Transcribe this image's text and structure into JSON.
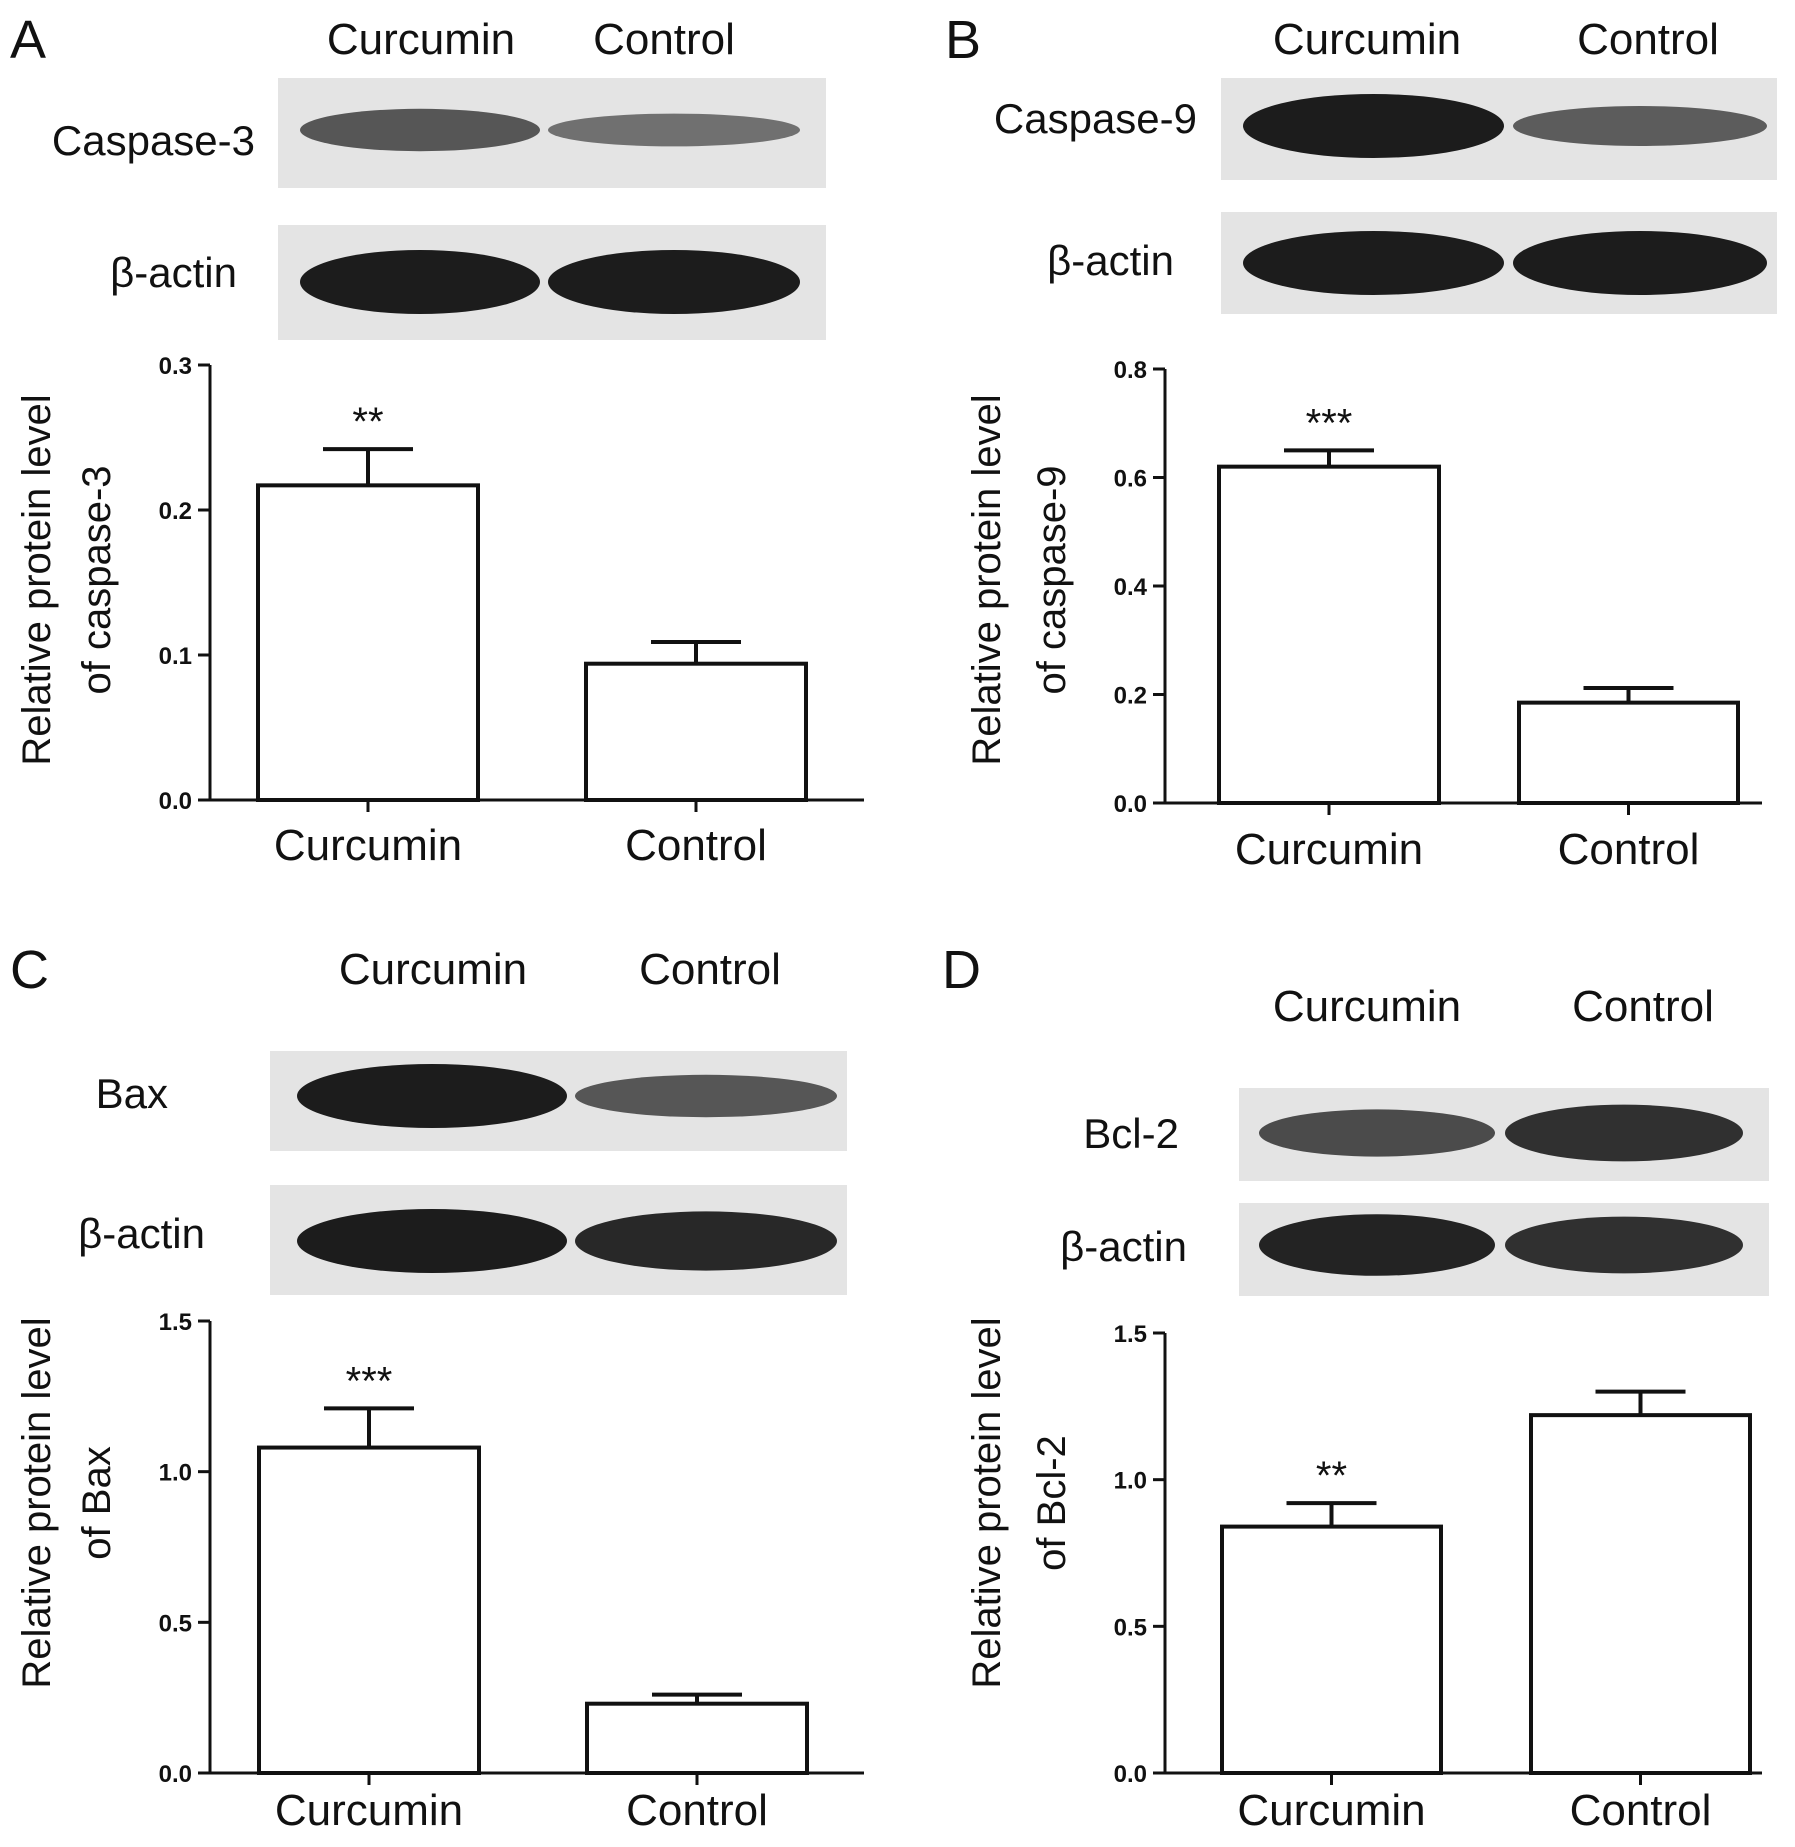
{
  "colors": {
    "ink": "#111111",
    "bar_fill": "#ffffff",
    "blot_bg": "#e4e4e4",
    "band": "#1c1c1c"
  },
  "chart_data": [
    {
      "type": "bar",
      "panel": "A",
      "lanes": [
        "Curcumin",
        "Control"
      ],
      "blots": [
        "Caspase-3",
        "β-actin"
      ],
      "band_intensity": [
        [
          0.55,
          0.35
        ],
        [
          1.0,
          1.0
        ]
      ],
      "categories": [
        "Curcumin",
        "Control"
      ],
      "values": [
        0.217,
        0.094
      ],
      "errors": [
        0.025,
        0.015
      ],
      "significance": [
        "**",
        ""
      ],
      "ylabel_lines": [
        "Relative protein level",
        "of caspase-3"
      ],
      "ylim": [
        0,
        0.3
      ],
      "yticks": [
        "0.0",
        "0.1",
        "0.2",
        "0.3"
      ]
    },
    {
      "type": "bar",
      "panel": "B",
      "lanes": [
        "Curcumin",
        "Control"
      ],
      "blots": [
        "Caspase-9",
        "β-actin"
      ],
      "band_intensity": [
        [
          1.0,
          0.5
        ],
        [
          1.0,
          1.0
        ]
      ],
      "categories": [
        "Curcumin",
        "Control"
      ],
      "values": [
        0.62,
        0.185
      ],
      "errors": [
        0.03,
        0.027
      ],
      "significance": [
        "***",
        ""
      ],
      "ylabel_lines": [
        "Relative protein level",
        "of caspase-9"
      ],
      "ylim": [
        0,
        0.8
      ],
      "yticks": [
        "0.0",
        "0.2",
        "0.4",
        "0.6",
        "0.8"
      ]
    },
    {
      "type": "bar",
      "panel": "C",
      "lanes": [
        "Curcumin",
        "Control"
      ],
      "blots": [
        "Bax",
        "β-actin"
      ],
      "band_intensity": [
        [
          1.0,
          0.55
        ],
        [
          1.0,
          0.9
        ]
      ],
      "categories": [
        "Curcumin",
        "Control"
      ],
      "values": [
        1.08,
        0.23
      ],
      "errors": [
        0.13,
        0.03
      ],
      "significance": [
        "***",
        ""
      ],
      "ylabel_lines": [
        "Relative protein level",
        "of Bax"
      ],
      "ylim": [
        0,
        1.5
      ],
      "yticks": [
        "0.0",
        "0.5",
        "1.0",
        "1.5"
      ]
    },
    {
      "type": "bar",
      "panel": "D",
      "lanes": [
        "Curcumin",
        "Control"
      ],
      "blots": [
        "Bcl-2",
        "β-actin"
      ],
      "band_intensity": [
        [
          0.65,
          0.85
        ],
        [
          0.95,
          0.85
        ]
      ],
      "categories": [
        "Curcumin",
        "Control"
      ],
      "values": [
        0.84,
        1.22
      ],
      "errors": [
        0.08,
        0.08
      ],
      "significance": [
        "**",
        ""
      ],
      "ylabel_lines": [
        "Relative protein level",
        "of Bcl-2"
      ],
      "ylim": [
        0,
        1.5
      ],
      "yticks": [
        "0.0",
        "0.5",
        "1.0",
        "1.5"
      ]
    }
  ]
}
